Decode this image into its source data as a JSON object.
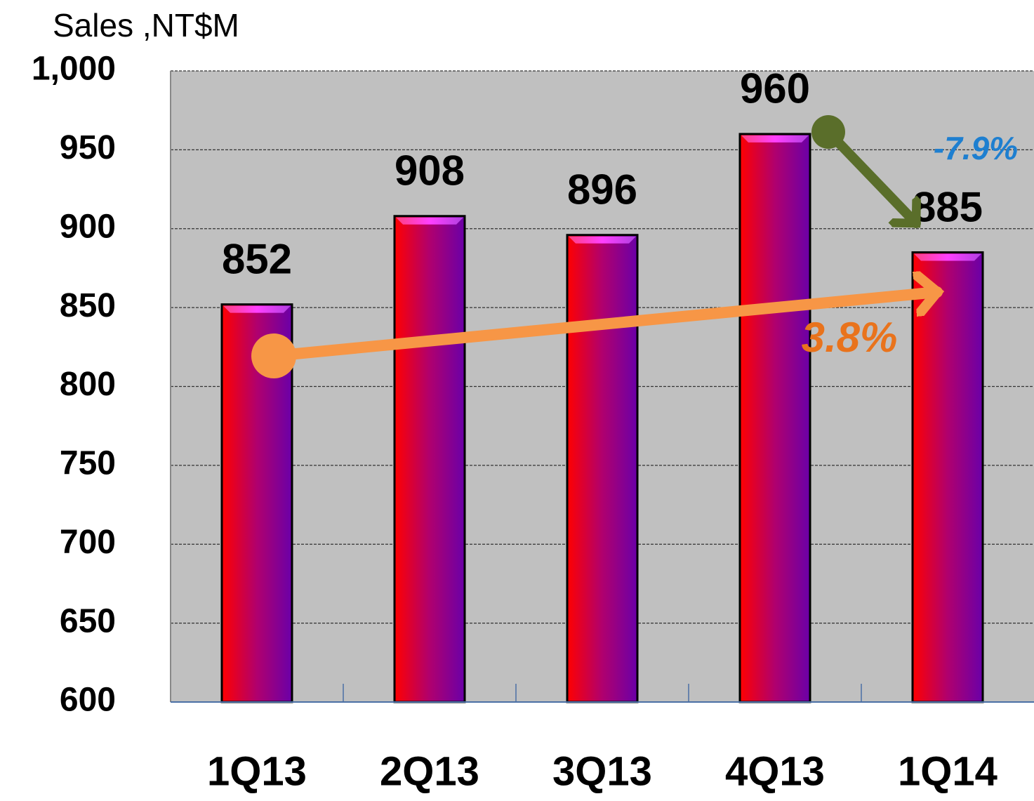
{
  "chart_data": {
    "type": "bar",
    "y_axis_label": "Sales ,NT$M",
    "categories": [
      "1Q13",
      "2Q13",
      "3Q13",
      "4Q13",
      "1Q14"
    ],
    "values": [
      852,
      908,
      896,
      960,
      885
    ],
    "ylim": [
      600,
      1000
    ],
    "yticks": [
      600,
      650,
      700,
      750,
      800,
      850,
      900,
      950,
      {
        "value": 1000,
        "label": "1,000"
      }
    ],
    "grid": true,
    "annotations": [
      "-7.9%",
      "3.8%"
    ]
  }
}
